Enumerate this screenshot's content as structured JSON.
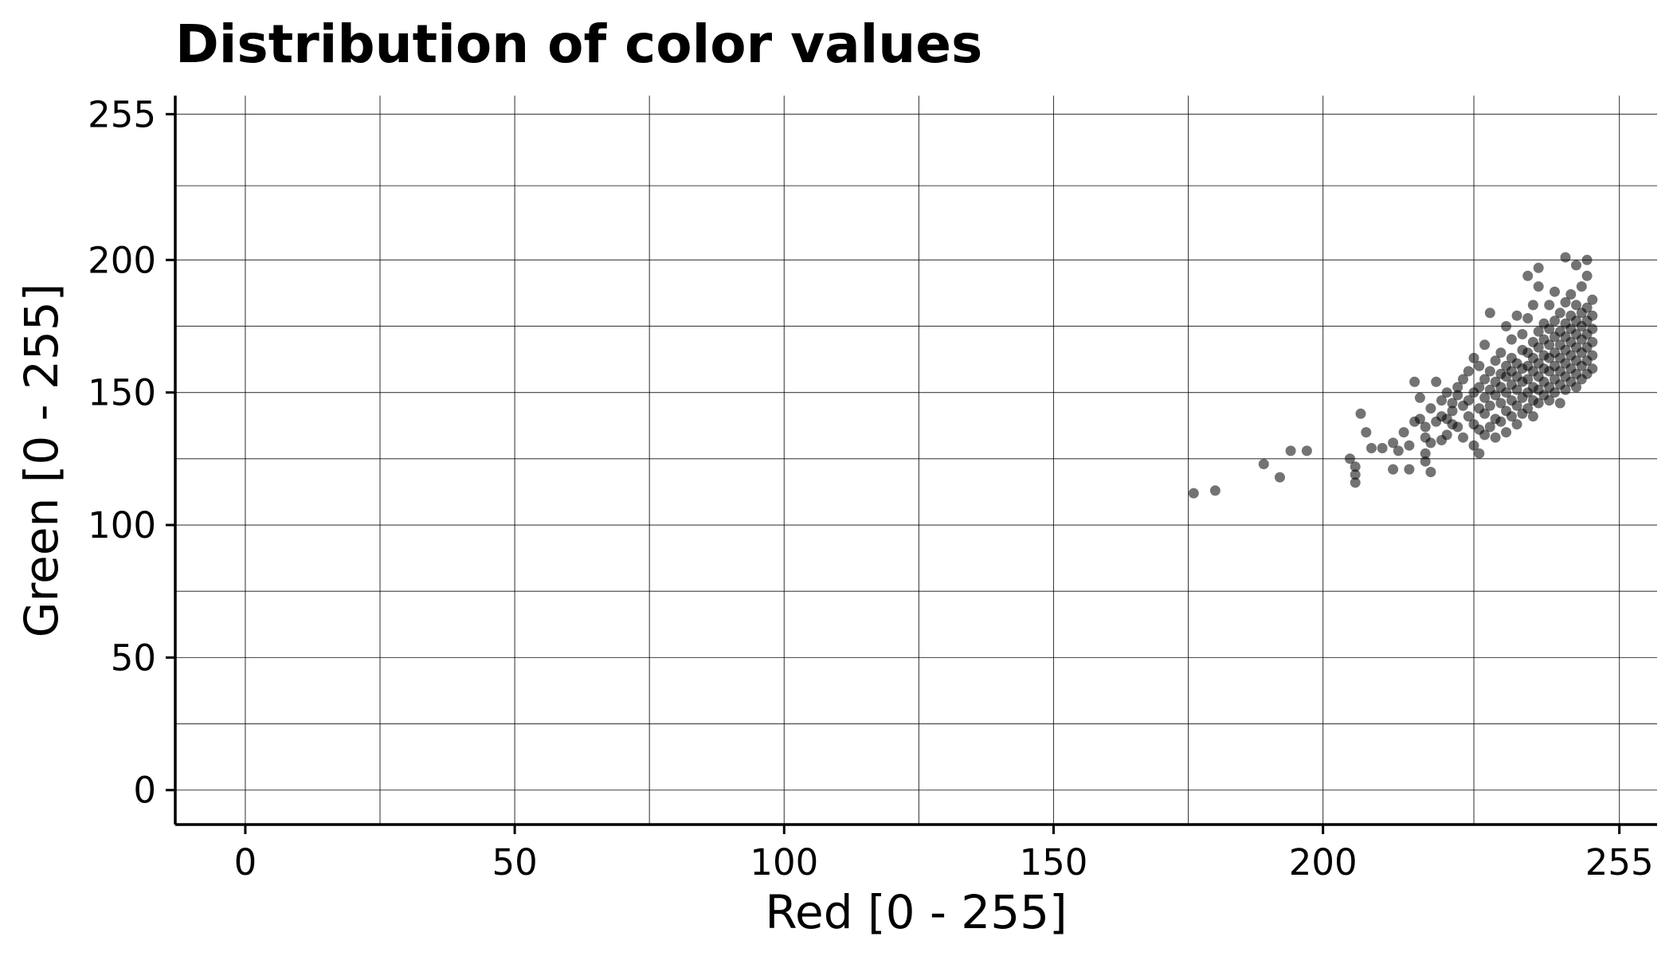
{
  "chart_data": {
    "type": "scatter",
    "title": "Distribution of color values",
    "xlabel": "Red [0 - 255]",
    "ylabel": "Green [0 - 255]",
    "xlim": [
      -13,
      262
    ],
    "ylim": [
      -13,
      262
    ],
    "x_ticks": [
      0,
      50,
      100,
      150,
      200,
      255
    ],
    "x_tick_labels": [
      "0",
      "50",
      "100",
      "150",
      "200",
      "255"
    ],
    "y_ticks": [
      0,
      50,
      100,
      150,
      200,
      255
    ],
    "y_tick_labels": [
      "0",
      "50",
      "100",
      "150",
      "200",
      "255"
    ],
    "x_minor_grid": [
      25,
      75,
      125,
      175,
      228
    ],
    "y_minor_grid": [
      25,
      75,
      125,
      175,
      228
    ],
    "grid": true,
    "point_color": "#000000",
    "point_alpha": 0.55,
    "points": [
      [
        176,
        112
      ],
      [
        180,
        113
      ],
      [
        189,
        123
      ],
      [
        192,
        118
      ],
      [
        194,
        128
      ],
      [
        197,
        128
      ],
      [
        205,
        125
      ],
      [
        206,
        116
      ],
      [
        206,
        119
      ],
      [
        206,
        122
      ],
      [
        207,
        142
      ],
      [
        208,
        135
      ],
      [
        209,
        129
      ],
      [
        211,
        129
      ],
      [
        213,
        121
      ],
      [
        213,
        131
      ],
      [
        214,
        128
      ],
      [
        215,
        135
      ],
      [
        216,
        121
      ],
      [
        216,
        130
      ],
      [
        217,
        139
      ],
      [
        217,
        154
      ],
      [
        218,
        140
      ],
      [
        218,
        148
      ],
      [
        219,
        124
      ],
      [
        219,
        127
      ],
      [
        219,
        133
      ],
      [
        219,
        137
      ],
      [
        220,
        120
      ],
      [
        220,
        131
      ],
      [
        220,
        144
      ],
      [
        221,
        139
      ],
      [
        221,
        154
      ],
      [
        222,
        132
      ],
      [
        222,
        141
      ],
      [
        222,
        147
      ],
      [
        223,
        134
      ],
      [
        223,
        140
      ],
      [
        223,
        150
      ],
      [
        224,
        138
      ],
      [
        224,
        143
      ],
      [
        224,
        146
      ],
      [
        225,
        137
      ],
      [
        225,
        149
      ],
      [
        225,
        152
      ],
      [
        226,
        133
      ],
      [
        226,
        145
      ],
      [
        226,
        155
      ],
      [
        227,
        141
      ],
      [
        227,
        147
      ],
      [
        227,
        158
      ],
      [
        228,
        130
      ],
      [
        228,
        138
      ],
      [
        228,
        150
      ],
      [
        228,
        163
      ],
      [
        229,
        127
      ],
      [
        229,
        136
      ],
      [
        229,
        144
      ],
      [
        229,
        152
      ],
      [
        229,
        160
      ],
      [
        230,
        134
      ],
      [
        230,
        142
      ],
      [
        230,
        148
      ],
      [
        230,
        155
      ],
      [
        230,
        168
      ],
      [
        231,
        137
      ],
      [
        231,
        145
      ],
      [
        231,
        151
      ],
      [
        231,
        158
      ],
      [
        231,
        180
      ],
      [
        232,
        133
      ],
      [
        232,
        140
      ],
      [
        232,
        149
      ],
      [
        232,
        154
      ],
      [
        232,
        162
      ],
      [
        233,
        139
      ],
      [
        233,
        146
      ],
      [
        233,
        152
      ],
      [
        233,
        157
      ],
      [
        233,
        165
      ],
      [
        234,
        135
      ],
      [
        234,
        143
      ],
      [
        234,
        150
      ],
      [
        234,
        156
      ],
      [
        234,
        160
      ],
      [
        234,
        175
      ],
      [
        235,
        141
      ],
      [
        235,
        147
      ],
      [
        235,
        153
      ],
      [
        235,
        158
      ],
      [
        235,
        163
      ],
      [
        235,
        170
      ],
      [
        236,
        138
      ],
      [
        236,
        145
      ],
      [
        236,
        151
      ],
      [
        236,
        156
      ],
      [
        236,
        161
      ],
      [
        236,
        179
      ],
      [
        237,
        142
      ],
      [
        237,
        148
      ],
      [
        237,
        154
      ],
      [
        237,
        159
      ],
      [
        237,
        166
      ],
      [
        237,
        172
      ],
      [
        238,
        144
      ],
      [
        238,
        150
      ],
      [
        238,
        155
      ],
      [
        238,
        160
      ],
      [
        238,
        165
      ],
      [
        238,
        178
      ],
      [
        238,
        194
      ],
      [
        239,
        141
      ],
      [
        239,
        147
      ],
      [
        239,
        152
      ],
      [
        239,
        158
      ],
      [
        239,
        163
      ],
      [
        239,
        169
      ],
      [
        239,
        183
      ],
      [
        240,
        146
      ],
      [
        240,
        151
      ],
      [
        240,
        156
      ],
      [
        240,
        161
      ],
      [
        240,
        167
      ],
      [
        240,
        173
      ],
      [
        240,
        190
      ],
      [
        240,
        197
      ],
      [
        241,
        149
      ],
      [
        241,
        154
      ],
      [
        241,
        159
      ],
      [
        241,
        164
      ],
      [
        241,
        170
      ],
      [
        241,
        176
      ],
      [
        242,
        147
      ],
      [
        242,
        152
      ],
      [
        242,
        158
      ],
      [
        242,
        163
      ],
      [
        242,
        168
      ],
      [
        242,
        174
      ],
      [
        242,
        183
      ],
      [
        243,
        150
      ],
      [
        243,
        155
      ],
      [
        243,
        160
      ],
      [
        243,
        165
      ],
      [
        243,
        171
      ],
      [
        243,
        177
      ],
      [
        243,
        188
      ],
      [
        244,
        146
      ],
      [
        244,
        153
      ],
      [
        244,
        158
      ],
      [
        244,
        163
      ],
      [
        244,
        168
      ],
      [
        244,
        173
      ],
      [
        244,
        180
      ],
      [
        245,
        151
      ],
      [
        245,
        156
      ],
      [
        245,
        161
      ],
      [
        245,
        166
      ],
      [
        245,
        171
      ],
      [
        245,
        176
      ],
      [
        245,
        184
      ],
      [
        245,
        201
      ],
      [
        246,
        154
      ],
      [
        246,
        159
      ],
      [
        246,
        164
      ],
      [
        246,
        169
      ],
      [
        246,
        174
      ],
      [
        246,
        179
      ],
      [
        246,
        187
      ],
      [
        247,
        152
      ],
      [
        247,
        157
      ],
      [
        247,
        162
      ],
      [
        247,
        167
      ],
      [
        247,
        172
      ],
      [
        247,
        177
      ],
      [
        247,
        183
      ],
      [
        247,
        198
      ],
      [
        248,
        155
      ],
      [
        248,
        160
      ],
      [
        248,
        165
      ],
      [
        248,
        170
      ],
      [
        248,
        175
      ],
      [
        248,
        180
      ],
      [
        248,
        190
      ],
      [
        249,
        157
      ],
      [
        249,
        162
      ],
      [
        249,
        167
      ],
      [
        249,
        172
      ],
      [
        249,
        177
      ],
      [
        249,
        182
      ],
      [
        249,
        194
      ],
      [
        249,
        200
      ],
      [
        250,
        159
      ],
      [
        250,
        164
      ],
      [
        250,
        169
      ],
      [
        250,
        174
      ],
      [
        250,
        179
      ],
      [
        250,
        185
      ]
    ]
  }
}
